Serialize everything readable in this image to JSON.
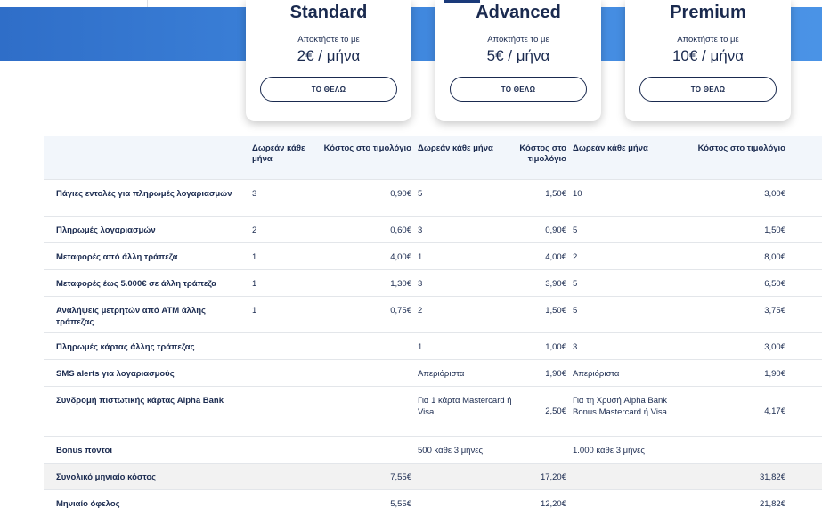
{
  "plans": [
    {
      "name": "Standard",
      "subtitle": "Αποκτήστε το με",
      "price": "2€ / μήνα",
      "button": "ΤΟ ΘΕΛΩ"
    },
    {
      "name": "Advanced",
      "subtitle": "Αποκτήστε το με",
      "price": "5€ / μήνα",
      "button": "ΤΟ ΘΕΛΩ"
    },
    {
      "name": "Premium",
      "subtitle": "Αποκτήστε το με",
      "price": "10€ / μήνα",
      "button": "ΤΟ ΘΕΛΩ"
    }
  ],
  "table": {
    "header": {
      "free": "Δωρεάν κάθε μήνα",
      "cost": "Κόστος στο τιμολόγιο"
    },
    "rows": [
      {
        "label": "Πάγιες εντολές για πληρωμές λογαριασμών",
        "s_free": "3",
        "s_cost": "0,90€",
        "a_free": "5",
        "a_cost": "1,50€",
        "p_free": "10",
        "p_cost": "3,00€"
      },
      {
        "label": "Πληρωμές λογαριασμών",
        "s_free": "2",
        "s_cost": "0,60€",
        "a_free": "3",
        "a_cost": "0,90€",
        "p_free": "5",
        "p_cost": "1,50€"
      },
      {
        "label": "Μεταφορές από άλλη τράπεζα",
        "s_free": "1",
        "s_cost": "4,00€",
        "a_free": "1",
        "a_cost": "4,00€",
        "p_free": "2",
        "p_cost": "8,00€"
      },
      {
        "label": "Μεταφορές έως 5.000€ σε άλλη τράπεζα",
        "s_free": "1",
        "s_cost": "1,30€",
        "a_free": "3",
        "a_cost": "3,90€",
        "p_free": "5",
        "p_cost": "6,50€"
      },
      {
        "label": "Αναλήψεις μετρητών από ATM άλλης τράπεζας",
        "s_free": "1",
        "s_cost": "0,75€",
        "a_free": "2",
        "a_cost": "1,50€",
        "p_free": "5",
        "p_cost": "3,75€"
      },
      {
        "label": "Πληρωμές κάρτας άλλης τράπεζας",
        "s_free": "",
        "s_cost": "",
        "a_free": "1",
        "a_cost": "1,00€",
        "p_free": "3",
        "p_cost": "3,00€"
      },
      {
        "label": "SMS alerts για λογαριασμούς",
        "s_free": "",
        "s_cost": "",
        "a_free": "Απεριόριστα",
        "a_cost": "1,90€",
        "p_free": "Απεριόριστα",
        "p_cost": "1,90€"
      },
      {
        "label": "Συνδρομή πιστωτικής κάρτας Alpha Bank",
        "s_free": "",
        "s_cost": "",
        "a_free": "Για 1 κάρτα Mastercard ή Visa",
        "a_cost": "2,50€",
        "p_free": "Για τη Χρυσή Alpha Bank Bonus Mastercard ή Visa",
        "p_cost": "4,17€"
      },
      {
        "label": "Bonus πόντοι",
        "s_free": "",
        "s_cost": "",
        "a_free": "500 κάθε 3 μήνες",
        "a_cost": "",
        "p_free": "1.000 κάθε 3 μήνες",
        "p_cost": ""
      }
    ],
    "total": {
      "label": "Συνολικό μηνιαίο κόστος",
      "s": "7,55€",
      "a": "17,20€",
      "p": "31,82€"
    },
    "benefit": {
      "label": "Μηνιαίο όφελος",
      "s": "5,55€",
      "a": "12,20€",
      "p": "21,82€"
    }
  }
}
